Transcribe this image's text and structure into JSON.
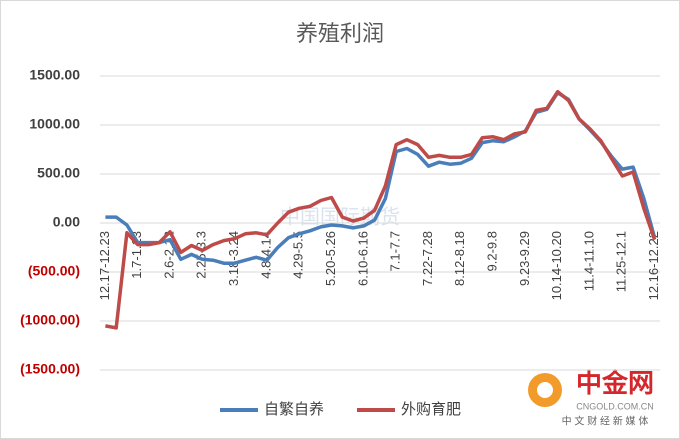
{
  "chart_data": {
    "type": "line",
    "title": "养殖利润",
    "categories": [
      "12.17-12.23",
      null,
      null,
      "1.7-1.13",
      null,
      null,
      "2.6-2.12",
      null,
      null,
      "2.25-3.3",
      null,
      null,
      "3.18-3.24",
      null,
      null,
      "4.8-4.14",
      null,
      null,
      "4.29-5.5",
      null,
      null,
      "5.20-5.26",
      null,
      null,
      "6.10-6.16",
      null,
      null,
      "7.1-7.7",
      null,
      null,
      "7.22-7.28",
      null,
      null,
      "8.12-8.18",
      null,
      null,
      "9.2-9.8",
      null,
      null,
      "9.23-9.29",
      null,
      null,
      "10.14-10.20",
      null,
      null,
      "11.4-11.10",
      null,
      null,
      "11.25-12.1",
      null,
      null,
      "12.16-12.22"
    ],
    "series": [
      {
        "name": "自繁自养",
        "color": "#4a7ebb",
        "values": [
          60,
          60,
          -20,
          -200,
          -200,
          -200,
          -170,
          -370,
          -320,
          -370,
          -380,
          -410,
          -410,
          -380,
          -350,
          -380,
          -250,
          -150,
          -110,
          -80,
          -40,
          -20,
          -30,
          -50,
          -30,
          30,
          250,
          730,
          760,
          700,
          580,
          620,
          600,
          610,
          660,
          820,
          840,
          830,
          880,
          940,
          1130,
          1160,
          1330,
          1260,
          1060,
          950,
          830,
          680,
          550,
          570,
          250,
          -150
        ]
      },
      {
        "name": "外购育肥",
        "color": "#be4b48",
        "values": [
          -1050,
          -1070,
          -100,
          -220,
          -220,
          -200,
          -90,
          -300,
          -230,
          -280,
          -220,
          -180,
          -160,
          -110,
          -100,
          -120,
          0,
          110,
          150,
          170,
          230,
          260,
          60,
          20,
          50,
          130,
          380,
          800,
          850,
          800,
          670,
          690,
          670,
          670,
          700,
          870,
          880,
          850,
          910,
          930,
          1150,
          1170,
          1340,
          1250,
          1060,
          960,
          840,
          660,
          480,
          520,
          150,
          -170
        ]
      }
    ],
    "ylim": [
      -1500,
      1500
    ],
    "yticks": [
      {
        "value": -1500,
        "label": "(1500.00)"
      },
      {
        "value": -1000,
        "label": "(1000.00)"
      },
      {
        "value": -500,
        "label": "(500.00)"
      },
      {
        "value": 0,
        "label": "0.00"
      },
      {
        "value": 500,
        "label": "500.00"
      },
      {
        "value": 1000,
        "label": "1000.00"
      },
      {
        "value": 1500,
        "label": "1500.00"
      }
    ],
    "grid": true,
    "legend": "bottom"
  },
  "watermark": "中国国际期货",
  "logo": {
    "name": "中金网",
    "url": "CNGOLD.COM.CN",
    "tagline": "中 文 财 经 新 媒 体"
  }
}
